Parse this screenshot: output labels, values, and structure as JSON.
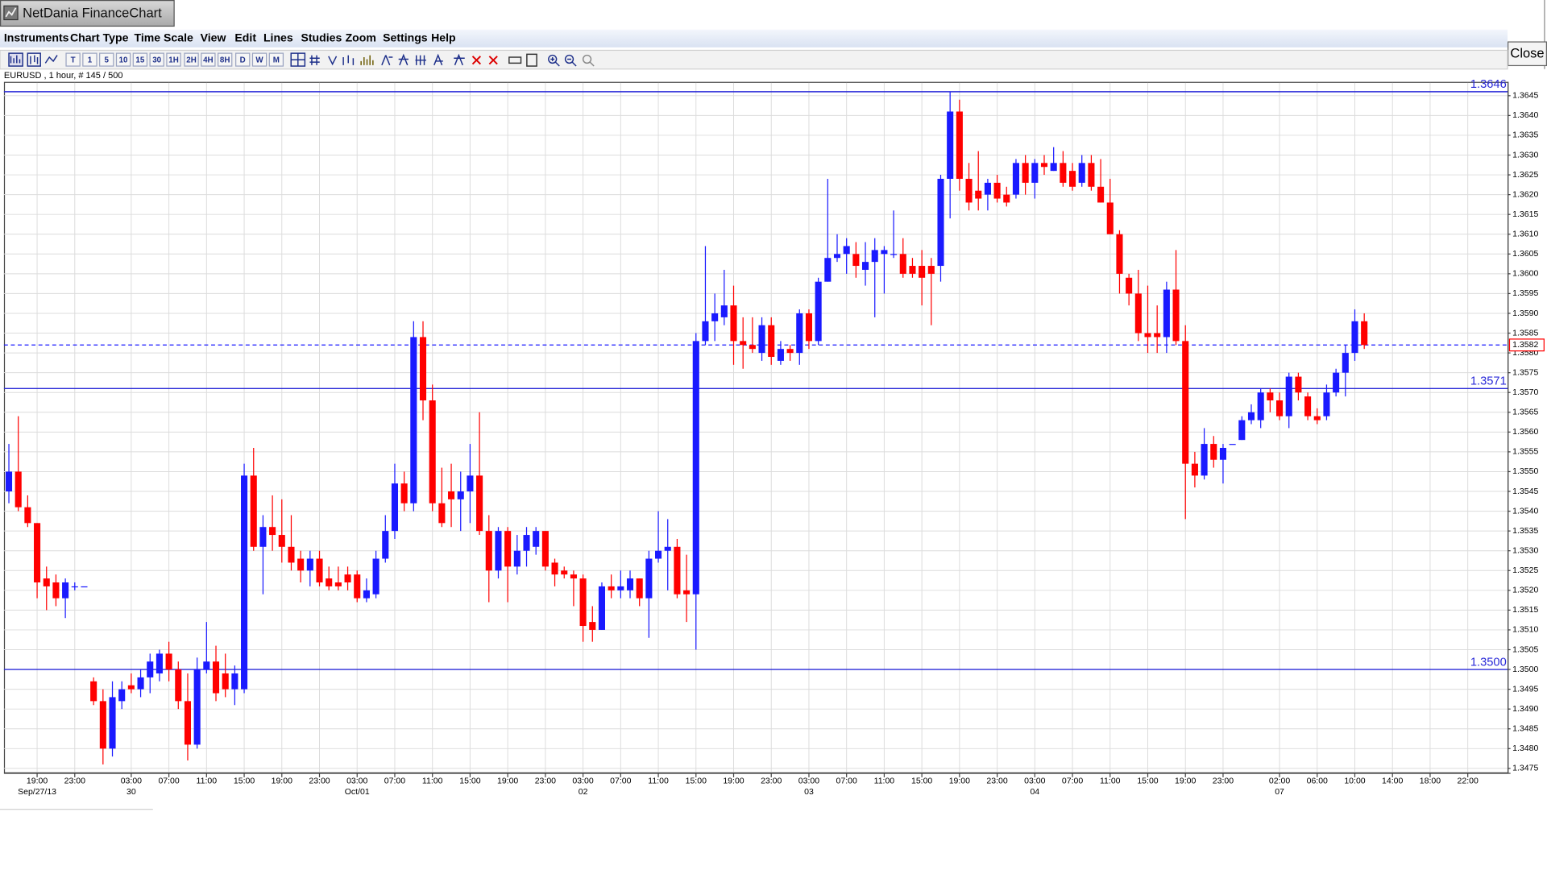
{
  "window_title": "NetDania FinanceChart",
  "menu": [
    "Instruments",
    "Chart Type",
    "Time Scale",
    "View",
    "Edit",
    "Lines",
    "Studies",
    "Zoom",
    "Settings",
    "Help"
  ],
  "toolbar": [
    "T",
    "1",
    "5",
    "10",
    "15",
    "30",
    "1H",
    "2H",
    "4H",
    "8H",
    "D",
    "W",
    "M"
  ],
  "close_button": "Close",
  "chart_data": {
    "type": "candlestick",
    "subtitle": "EURUSD , 1 hour, # 145 / 500",
    "up_color": "#1a1aff",
    "down_color": "#ff0000",
    "line_color": "#2a2ad8",
    "grid": true,
    "ylim": [
      1.3474,
      1.3648
    ],
    "yticks": [
      1.3475,
      {
        "value": 1.348,
        "label": "1.3480"
      },
      1.3485,
      {
        "value": 1.349,
        "label": "1.3490"
      },
      1.3495,
      {
        "value": 1.35,
        "label": "1.3500"
      },
      1.3505,
      {
        "value": 1.351,
        "label": "1.3510"
      },
      1.3515,
      {
        "value": 1.352,
        "label": "1.3520"
      },
      1.3525,
      {
        "value": 1.353,
        "label": "1.3530"
      },
      1.3535,
      {
        "value": 1.354,
        "label": "1.3540"
      },
      1.3545,
      {
        "value": 1.355,
        "label": "1.3550"
      },
      1.3555,
      {
        "value": 1.356,
        "label": "1.3560"
      },
      1.3565,
      {
        "value": 1.357,
        "label": "1.3570"
      },
      1.3575,
      {
        "value": 1.358,
        "label": "1.3580"
      },
      1.3585,
      {
        "value": 1.359,
        "label": "1.3590"
      },
      1.3595,
      {
        "value": 1.36,
        "label": "1.3600"
      },
      1.3605,
      {
        "value": 1.361,
        "label": "1.3610"
      },
      1.3615,
      {
        "value": 1.362,
        "label": "1.3620"
      },
      1.3625,
      {
        "value": 1.363,
        "label": "1.3630"
      },
      1.3635,
      {
        "value": 1.364,
        "label": "1.3640"
      },
      1.3645
    ],
    "hlines": [
      1.3646,
      1.3571,
      {
        "value": 1.35,
        "label": "1.3500"
      }
    ],
    "last_price": 1.3582,
    "categories": [
      null,
      null,
      null,
      "19:00",
      null,
      null,
      null,
      "23:00",
      null,
      null,
      null,
      null,
      null,
      "03:00",
      null,
      null,
      null,
      "07:00",
      null,
      null,
      null,
      "11:00",
      null,
      null,
      null,
      "15:00",
      null,
      null,
      null,
      "19:00",
      null,
      null,
      null,
      "23:00",
      null,
      null,
      null,
      "03:00",
      null,
      null,
      null,
      "07:00",
      null,
      null,
      null,
      "11:00",
      null,
      null,
      null,
      "15:00",
      null,
      null,
      null,
      "19:00",
      null,
      null,
      null,
      "23:00",
      null,
      null,
      null,
      "03:00",
      null,
      null,
      null,
      "07:00",
      null,
      null,
      null,
      "11:00",
      null,
      null,
      null,
      "15:00",
      null,
      null,
      null,
      "19:00",
      null,
      null,
      null,
      "23:00",
      null,
      null,
      null,
      "03:00",
      null,
      null,
      null,
      "07:00",
      null,
      null,
      null,
      "11:00",
      null,
      null,
      null,
      "15:00",
      null,
      null,
      null,
      "19:00",
      null,
      null,
      null,
      "23:00",
      null,
      null,
      null,
      "03:00",
      null,
      null,
      null,
      "07:00",
      null,
      null,
      null,
      "11:00",
      null,
      null,
      null,
      "15:00",
      null,
      null,
      null,
      "19:00",
      null,
      null,
      null,
      "23:00",
      null,
      null,
      null,
      null,
      null,
      "02:00",
      null,
      null,
      null,
      "06:00",
      null,
      null,
      null,
      "10:00",
      null,
      null,
      null,
      "14:00",
      null,
      null,
      null,
      "18:00",
      null,
      null,
      null,
      "22:00",
      null,
      null,
      null,
      null
    ],
    "dates": [
      null,
      null,
      null,
      "Sep/27/13",
      null,
      null,
      null,
      null,
      null,
      null,
      null,
      null,
      null,
      "30",
      null,
      null,
      null,
      null,
      null,
      null,
      null,
      null,
      null,
      null,
      null,
      null,
      null,
      null,
      null,
      null,
      null,
      null,
      null,
      null,
      null,
      null,
      null,
      "Oct/01",
      null,
      null,
      null,
      null,
      null,
      null,
      null,
      null,
      null,
      null,
      null,
      null,
      null,
      null,
      null,
      null,
      null,
      null,
      null,
      null,
      null,
      null,
      null,
      "02",
      null,
      null,
      null,
      null,
      null,
      null,
      null,
      null,
      null,
      null,
      null,
      null,
      null,
      null,
      null,
      null,
      null,
      null,
      null,
      null,
      null,
      null,
      null,
      "03",
      null,
      null,
      null,
      null,
      null,
      null,
      null,
      null,
      null,
      null,
      null,
      null,
      null,
      null,
      null,
      null,
      null,
      null,
      null,
      null,
      null,
      null,
      null,
      "04",
      null,
      null,
      null,
      null,
      null,
      null,
      null,
      null,
      null,
      null,
      null,
      null,
      null,
      null,
      null,
      null,
      null,
      null,
      null,
      null,
      null,
      null,
      null,
      null,
      null,
      "07",
      null,
      null,
      null,
      null,
      null,
      null,
      null,
      null,
      null,
      null,
      null,
      null,
      null,
      null,
      null,
      null,
      null,
      null,
      null,
      null,
      null,
      null,
      null,
      null
    ],
    "open": [
      1.3545,
      1.355,
      1.3541,
      1.3537,
      1.3523,
      1.3522,
      1.3518,
      1.3521,
      1.3521,
      1.3497,
      1.3492,
      1.348,
      1.3492,
      1.3496,
      1.3495,
      1.3498,
      1.3499,
      1.3504,
      1.35,
      1.3492,
      1.3481,
      1.35,
      1.3502,
      1.3499,
      1.3495,
      1.3495,
      1.3549,
      1.3531,
      1.3536,
      1.3534,
      1.3531,
      1.3528,
      1.3525,
      1.3528,
      1.3523,
      1.3522,
      1.3524,
      1.3524,
      1.3518,
      1.3519,
      1.3528,
      1.3535,
      1.3547,
      1.3542,
      1.3584,
      1.3568,
      1.3542,
      1.3545,
      1.3543,
      1.3545,
      1.3549,
      1.3535,
      1.3525,
      1.3535,
      1.3526,
      1.353,
      1.3531,
      1.3535,
      1.3527,
      1.3525,
      1.3524,
      1.3523,
      1.3512,
      1.351,
      1.3521,
      1.352,
      1.352,
      1.3523,
      1.3518,
      1.3528,
      1.353,
      1.3531,
      1.352,
      1.3519,
      1.3583,
      1.3588,
      1.3589,
      1.3592,
      1.3583,
      1.3582,
      1.358,
      1.3587,
      1.3578,
      1.3581,
      1.358,
      1.359,
      1.3583,
      1.3598,
      1.3604,
      1.3605,
      1.3605,
      1.3601,
      1.3603,
      1.3605,
      1.3605,
      1.3605,
      1.3602,
      1.3602,
      1.3602,
      1.3602,
      1.3624,
      1.3641,
      1.3624,
      1.3621,
      1.362,
      1.3623,
      1.362,
      1.362,
      1.3628,
      1.3623,
      1.3628,
      1.3626,
      1.3628,
      1.3626,
      1.3623,
      1.3628,
      1.3622,
      1.3618,
      1.361,
      1.3599,
      1.3595,
      1.3585,
      1.3585,
      1.3584,
      1.3596,
      1.3583,
      1.3552,
      1.3549,
      1.3557,
      1.3553,
      1.3557,
      1.3558,
      1.3563,
      1.3563,
      1.357,
      1.3568,
      1.3564,
      1.3574,
      1.3569,
      1.3564,
      1.3564,
      1.357,
      1.3575,
      1.358,
      1.3588,
      null,
      null,
      null,
      null,
      null,
      null,
      null,
      null,
      null,
      null,
      null,
      null,
      null,
      null,
      null
    ],
    "high": [
      1.3557,
      1.3564,
      1.3544,
      1.3537,
      1.3526,
      1.3524,
      1.3523,
      1.3522,
      1.3521,
      1.3498,
      1.3495,
      1.3497,
      1.3497,
      1.3499,
      1.35,
      1.3504,
      1.3505,
      1.3507,
      1.3502,
      1.3499,
      1.3503,
      1.3512,
      1.3506,
      1.3504,
      1.3501,
      1.3552,
      1.3556,
      1.3539,
      1.3544,
      1.3543,
      1.3539,
      1.353,
      1.353,
      1.353,
      1.3526,
      1.3526,
      1.3526,
      1.3525,
      1.3523,
      1.353,
      1.3539,
      1.3552,
      1.355,
      1.3588,
      1.3588,
      1.3572,
      1.3551,
      1.3552,
      1.355,
      1.3557,
      1.3565,
      1.3539,
      1.3536,
      1.3536,
      1.3534,
      1.3536,
      1.3536,
      1.3535,
      1.3528,
      1.3526,
      1.3525,
      1.3524,
      1.3516,
      1.3522,
      1.3524,
      1.3525,
      1.3525,
      1.3523,
      1.353,
      1.354,
      1.3538,
      1.3533,
      1.3529,
      1.3585,
      1.3607,
      1.3595,
      1.3601,
      1.3597,
      1.3589,
      1.3589,
      1.3589,
      1.3589,
      1.3583,
      1.3582,
      1.3591,
      1.3591,
      1.3599,
      1.3624,
      1.361,
      1.3609,
      1.3608,
      1.3608,
      1.3609,
      1.3607,
      1.3616,
      1.3609,
      1.3604,
      1.3606,
      1.3604,
      1.3625,
      1.3646,
      1.3644,
      1.3628,
      1.3631,
      1.3624,
      1.3625,
      1.3622,
      1.3629,
      1.363,
      1.3629,
      1.363,
      1.3632,
      1.3631,
      1.3628,
      1.363,
      1.363,
      1.3629,
      1.3624,
      1.3611,
      1.36,
      1.3601,
      1.3597,
      1.3592,
      1.3598,
      1.3606,
      1.3587,
      1.3555,
      1.3561,
      1.3559,
      1.3557,
      1.3557,
      1.3564,
      1.3567,
      1.3571,
      1.3571,
      1.357,
      1.3575,
      1.3575,
      1.357,
      1.3566,
      1.3572,
      1.3576,
      1.3582,
      1.3591,
      1.359,
      null,
      null,
      null,
      null,
      null,
      null,
      null,
      null,
      null,
      null,
      null,
      null,
      null,
      null,
      null
    ],
    "low": [
      1.3542,
      1.354,
      1.3536,
      1.3518,
      1.3515,
      1.3516,
      1.3513,
      1.352,
      1.3521,
      1.3491,
      1.3476,
      1.3478,
      1.349,
      1.3494,
      1.3493,
      1.3494,
      1.3497,
      1.3497,
      1.349,
      1.3477,
      1.348,
      1.3499,
      1.3492,
      1.3493,
      1.3491,
      1.3494,
      1.353,
      1.3519,
      1.353,
      1.3527,
      1.3525,
      1.3522,
      1.3521,
      1.3521,
      1.352,
      1.352,
      1.352,
      1.3517,
      1.3517,
      1.3518,
      1.3527,
      1.3533,
      1.354,
      1.354,
      1.3563,
      1.354,
      1.3536,
      1.3536,
      1.3535,
      1.3537,
      1.3534,
      1.3517,
      1.3523,
      1.3517,
      1.3524,
      1.3526,
      1.3529,
      1.3525,
      1.3521,
      1.3523,
      1.3516,
      1.3507,
      1.3507,
      1.351,
      1.3518,
      1.3518,
      1.3518,
      1.3516,
      1.3508,
      1.3527,
      1.352,
      1.3518,
      1.3512,
      1.3505,
      1.3582,
      1.3583,
      1.3587,
      1.3577,
      1.3576,
      1.358,
      1.3578,
      1.3577,
      1.3577,
      1.3578,
      1.3577,
      1.3581,
      1.3582,
      1.3598,
      1.3603,
      1.36,
      1.3599,
      1.3597,
      1.3589,
      1.3595,
      1.3604,
      1.3599,
      1.3599,
      1.3592,
      1.3587,
      1.3598,
      1.3614,
      1.3621,
      1.3616,
      1.3616,
      1.3616,
      1.3618,
      1.3617,
      1.3619,
      1.362,
      1.3619,
      1.3625,
      1.3626,
      1.3622,
      1.3621,
      1.3622,
      1.3621,
      1.3618,
      1.361,
      1.3595,
      1.3592,
      1.3583,
      1.358,
      1.358,
      1.358,
      1.3582,
      1.3538,
      1.3546,
      1.3548,
      1.3551,
      1.3547,
      1.3557,
      1.3558,
      1.3562,
      1.3561,
      1.3565,
      1.3563,
      1.3561,
      1.3568,
      1.3563,
      1.3562,
      1.3563,
      1.3569,
      1.3569,
      1.3578,
      1.3581,
      null,
      null,
      null,
      null,
      null,
      null,
      null,
      null,
      null,
      null,
      null,
      null,
      null,
      null,
      null
    ],
    "close": [
      1.355,
      1.3541,
      1.3537,
      1.3522,
      1.3521,
      1.3518,
      1.3522,
      1.3521,
      1.3521,
      1.3492,
      1.348,
      1.3493,
      1.3495,
      1.3495,
      1.3498,
      1.3502,
      1.3504,
      1.35,
      1.3492,
      1.3481,
      1.35,
      1.3502,
      1.3494,
      1.3495,
      1.3499,
      1.3549,
      1.3531,
      1.3536,
      1.3534,
      1.3531,
      1.3527,
      1.3525,
      1.3528,
      1.3522,
      1.3521,
      1.3521,
      1.3522,
      1.3518,
      1.352,
      1.3528,
      1.3535,
      1.3547,
      1.3542,
      1.3584,
      1.3568,
      1.3542,
      1.3537,
      1.3543,
      1.3545,
      1.3549,
      1.3535,
      1.3525,
      1.3535,
      1.3526,
      1.353,
      1.3534,
      1.3535,
      1.3526,
      1.3524,
      1.3524,
      1.3523,
      1.3511,
      1.351,
      1.3521,
      1.352,
      1.3521,
      1.3523,
      1.3518,
      1.3528,
      1.353,
      1.3531,
      1.3519,
      1.3519,
      1.3583,
      1.3588,
      1.359,
      1.3592,
      1.3583,
      1.3582,
      1.3581,
      1.3587,
      1.3579,
      1.3581,
      1.358,
      1.359,
      1.3583,
      1.3598,
      1.3604,
      1.3605,
      1.3607,
      1.3602,
      1.3603,
      1.3606,
      1.3606,
      1.3605,
      1.36,
      1.36,
      1.3599,
      1.36,
      1.3624,
      1.3641,
      1.3624,
      1.3618,
      1.3619,
      1.3623,
      1.3619,
      1.3618,
      1.3628,
      1.3623,
      1.3628,
      1.3627,
      1.3628,
      1.3623,
      1.3622,
      1.3628,
      1.3622,
      1.3618,
      1.361,
      1.36,
      1.3595,
      1.3585,
      1.3584,
      1.3584,
      1.3596,
      1.3583,
      1.3552,
      1.3549,
      1.3557,
      1.3553,
      1.3556,
      1.3557,
      1.3563,
      1.3565,
      1.357,
      1.3568,
      1.3564,
      1.3574,
      1.357,
      1.3564,
      1.3563,
      1.357,
      1.3575,
      1.358,
      1.3588,
      1.3582,
      null,
      null,
      null,
      null,
      null,
      null,
      null,
      null,
      null,
      null,
      null,
      null,
      null,
      null,
      null
    ]
  }
}
